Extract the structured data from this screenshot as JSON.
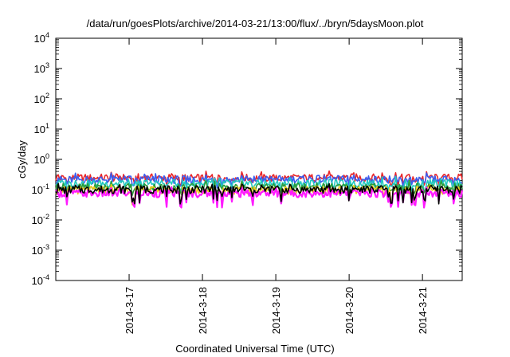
{
  "chart_data": {
    "type": "line",
    "title": "/data/run/goesPlots/archive/2014-03-21/13:00/flux/../bryn/5daysMoon.plot",
    "xlabel": "Coordinated Universal Time (UTC)",
    "ylabel": "cGy/day",
    "yscale": "log",
    "ylim": [
      0.0001,
      10000
    ],
    "xlim": [
      "2014-03-16 00:00",
      "2014-03-21 13:00"
    ],
    "x_ticks": [
      "2014-3-17",
      "2014-3-18",
      "2014-3-19",
      "2014-3-20",
      "2014-3-21"
    ],
    "y_ticks": [
      {
        "base": "10",
        "exp": "-4"
      },
      {
        "base": "10",
        "exp": "-3"
      },
      {
        "base": "10",
        "exp": "-2"
      },
      {
        "base": "10",
        "exp": "-1"
      },
      {
        "base": "10",
        "exp": "0"
      },
      {
        "base": "10",
        "exp": "1"
      },
      {
        "base": "10",
        "exp": "2"
      },
      {
        "base": "10",
        "exp": "3"
      },
      {
        "base": "10",
        "exp": "4"
      }
    ],
    "grid": false,
    "x": [
      "2014-03-16 00:00",
      "2014-03-17 00:00",
      "2014-03-18 00:00",
      "2014-03-19 00:00",
      "2014-03-20 00:00",
      "2014-03-21 00:00",
      "2014-03-21 13:00"
    ],
    "series": [
      {
        "color": "#e8262a",
        "values": [
          0.24,
          0.25,
          0.24,
          0.24,
          0.25,
          0.24,
          0.25
        ]
      },
      {
        "color": "#3b5ef0",
        "values": [
          0.21,
          0.22,
          0.21,
          0.22,
          0.22,
          0.21,
          0.22
        ]
      },
      {
        "color": "#22c8c0",
        "values": [
          0.16,
          0.16,
          0.16,
          0.16,
          0.16,
          0.16,
          0.16
        ]
      },
      {
        "color": "#2a9d3a",
        "values": [
          0.12,
          0.12,
          0.12,
          0.12,
          0.12,
          0.12,
          0.12
        ]
      },
      {
        "color": "#f0c81a",
        "values": [
          0.095,
          0.095,
          0.095,
          0.095,
          0.095,
          0.095,
          0.095
        ]
      },
      {
        "color": "#ff1aff",
        "values": [
          0.075,
          0.075,
          0.075,
          0.075,
          0.075,
          0.075,
          0.075
        ]
      },
      {
        "color": "#000000",
        "values": [
          0.1,
          0.1,
          0.1,
          0.1,
          0.1,
          0.1,
          0.1
        ]
      }
    ]
  }
}
